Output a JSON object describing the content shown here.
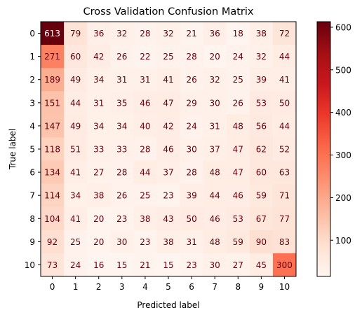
{
  "chart_data": {
    "type": "heatmap",
    "title": "Cross Validation Confusion Matrix",
    "xlabel": "Predicted label",
    "ylabel": "True label",
    "x_categories": [
      "0",
      "1",
      "2",
      "3",
      "4",
      "5",
      "6",
      "7",
      "8",
      "9",
      "10"
    ],
    "y_categories": [
      "0",
      "1",
      "2",
      "3",
      "4",
      "5",
      "6",
      "7",
      "8",
      "9",
      "10"
    ],
    "values": [
      [
        613,
        79,
        36,
        32,
        28,
        32,
        21,
        36,
        18,
        38,
        72
      ],
      [
        271,
        60,
        42,
        26,
        22,
        25,
        28,
        20,
        24,
        32,
        44
      ],
      [
        189,
        49,
        34,
        31,
        31,
        41,
        26,
        32,
        25,
        39,
        41
      ],
      [
        151,
        44,
        31,
        35,
        46,
        47,
        29,
        30,
        26,
        53,
        50
      ],
      [
        147,
        49,
        34,
        34,
        40,
        42,
        24,
        31,
        48,
        56,
        44
      ],
      [
        118,
        51,
        33,
        33,
        28,
        46,
        30,
        37,
        47,
        62,
        52
      ],
      [
        134,
        41,
        27,
        28,
        44,
        37,
        28,
        48,
        47,
        60,
        63
      ],
      [
        114,
        34,
        38,
        26,
        25,
        23,
        39,
        44,
        46,
        59,
        71
      ],
      [
        104,
        41,
        20,
        23,
        38,
        43,
        50,
        46,
        53,
        67,
        77
      ],
      [
        92,
        25,
        20,
        30,
        23,
        38,
        31,
        48,
        59,
        90,
        83
      ],
      [
        73,
        24,
        16,
        15,
        21,
        15,
        23,
        30,
        27,
        45,
        300
      ]
    ],
    "colormap": "Reds",
    "color_range": [
      15,
      613
    ],
    "colorbar_ticks": [
      100,
      200,
      300,
      400,
      500,
      600
    ],
    "text_color_dark": "#ffffff",
    "text_color_light": "#67000d"
  }
}
